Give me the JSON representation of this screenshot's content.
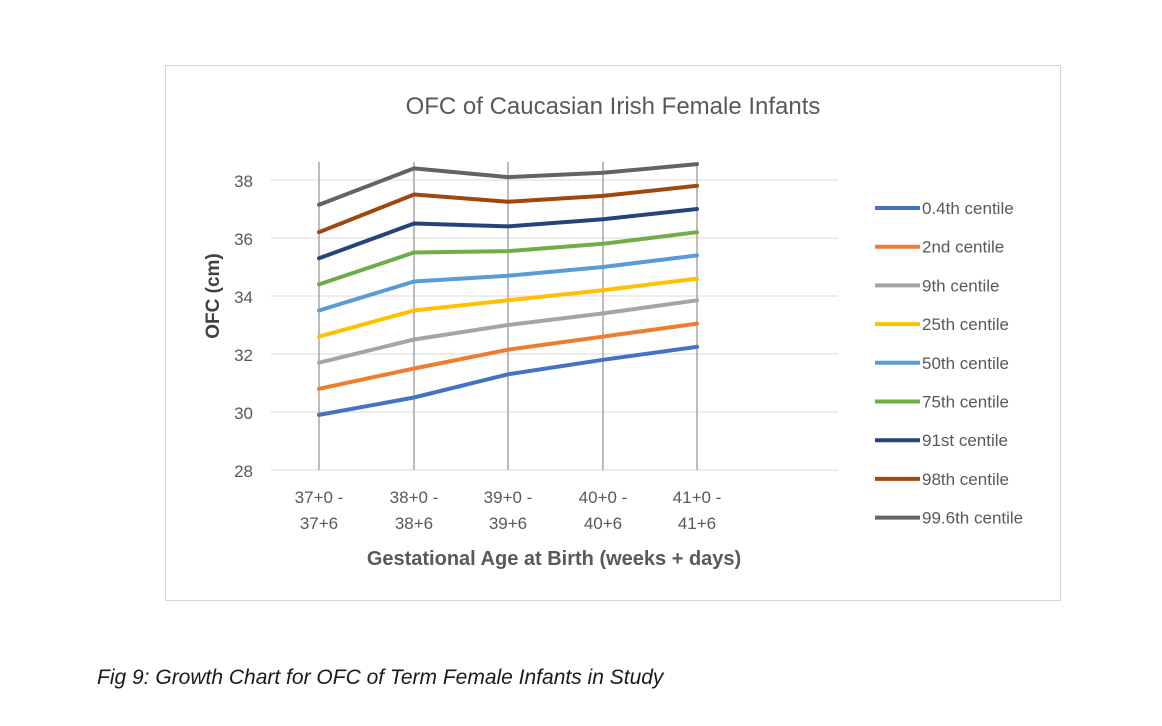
{
  "caption": "Fig 9: Growth Chart for OFC of Term Female Infants in Study",
  "chart_data": {
    "type": "line",
    "title": "OFC of Caucasian Irish Female Infants",
    "xlabel": "Gestational Age at Birth (weeks + days)",
    "ylabel": "OFC (cm)",
    "categories": [
      [
        "37+0 -",
        "37+6"
      ],
      [
        "38+0 -",
        "38+6"
      ],
      [
        "39+0 -",
        "39+6"
      ],
      [
        "40+0 -",
        "40+6"
      ],
      [
        "41+0 -",
        "41+6"
      ]
    ],
    "ylim": [
      28,
      38
    ],
    "yticks": [
      28,
      30,
      32,
      34,
      36,
      38
    ],
    "grid": true,
    "legend_position": "right",
    "series": [
      {
        "name": "0.4th centile",
        "color": "#4472C4",
        "values": [
          29.9,
          30.5,
          31.3,
          31.8,
          32.25
        ]
      },
      {
        "name": "2nd centile",
        "color": "#ED7D31",
        "values": [
          30.8,
          31.5,
          32.15,
          32.6,
          33.05
        ]
      },
      {
        "name": "9th centile",
        "color": "#A5A5A5",
        "values": [
          31.7,
          32.5,
          33.0,
          33.4,
          33.85
        ]
      },
      {
        "name": "25th centile",
        "color": "#FFC000",
        "values": [
          32.6,
          33.5,
          33.85,
          34.2,
          34.6
        ]
      },
      {
        "name": "50th centile",
        "color": "#5B9BD5",
        "values": [
          33.5,
          34.5,
          34.7,
          35.0,
          35.4
        ]
      },
      {
        "name": "75th centile",
        "color": "#70AD47",
        "values": [
          34.4,
          35.5,
          35.55,
          35.8,
          36.2
        ]
      },
      {
        "name": "91st centile",
        "color": "#264478",
        "values": [
          35.3,
          36.5,
          36.4,
          36.65,
          37.0
        ]
      },
      {
        "name": "98th centile",
        "color": "#9E480E",
        "values": [
          36.2,
          37.5,
          37.25,
          37.45,
          37.8
        ]
      },
      {
        "name": "99.6th centile",
        "color": "#636363",
        "values": [
          37.15,
          38.4,
          38.1,
          38.25,
          38.55
        ]
      }
    ]
  }
}
